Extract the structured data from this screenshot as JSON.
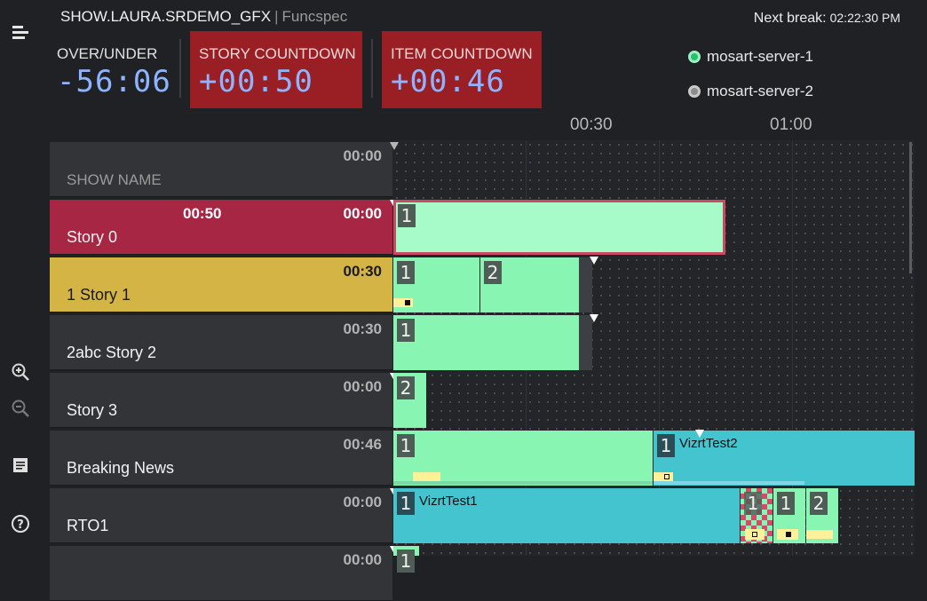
{
  "header": {
    "show_title": "SHOW.LAURA.SRDEMO_GFX",
    "separator": "|",
    "subtitle": "Funcspec",
    "next_break_label": "Next break:",
    "next_break_time": "02:22:30 PM"
  },
  "counters": {
    "over_under_label": "OVER/UNDER",
    "over_under_value": "-56:06",
    "story_countdown_label": "STORY COUNTDOWN",
    "story_countdown_value": "+00:50",
    "item_countdown_label": "ITEM COUNTDOWN",
    "item_countdown_value": "+00:46"
  },
  "servers": [
    {
      "name": "mosart-server-1",
      "status": "online",
      "color": "#25c16f"
    },
    {
      "name": "mosart-server-2",
      "status": "offline",
      "color": "#8c8c8c"
    }
  ],
  "timeline": {
    "ticks": [
      "00:30",
      "01:00"
    ]
  },
  "rows": [
    {
      "name": "SHOW NAME",
      "duration": "00:00",
      "expected": ""
    },
    {
      "name": "Story 0",
      "duration": "00:00",
      "expected": "00:50",
      "state": "live",
      "color": "#a72644"
    },
    {
      "name": "1 Story 1",
      "duration": "00:30",
      "expected": "",
      "state": "next",
      "color": "#d5b446"
    },
    {
      "name": "2abc Story 2",
      "duration": "00:30",
      "expected": ""
    },
    {
      "name": "Story 3",
      "duration": "00:00",
      "expected": ""
    },
    {
      "name": "Breaking News",
      "duration": "00:46",
      "expected": ""
    },
    {
      "name": "RTO1",
      "duration": "00:00",
      "expected": ""
    },
    {
      "name": "",
      "duration": "00:00",
      "expected": ""
    }
  ],
  "pieces": {
    "story0_p1": "1",
    "story1_p1": "1",
    "story1_p2": "2",
    "story2_p1": "1",
    "story3_p1": "2",
    "breaking_p1": "1",
    "breaking_p2": "1",
    "breaking_p2_name": "VizrtTest2",
    "rto1_p1": "1",
    "rto1_p1_name": "VizrtTest1",
    "rto1_p2": "1",
    "rto1_p3": "1",
    "rto1_p4": "2",
    "row8_p1": "1"
  },
  "icons": {
    "toolbar_top": "rundown-list-icon",
    "zoom_in": "zoom-in-icon",
    "zoom_out": "zoom-out-icon",
    "notes": "notes-icon",
    "help": "help-icon"
  }
}
